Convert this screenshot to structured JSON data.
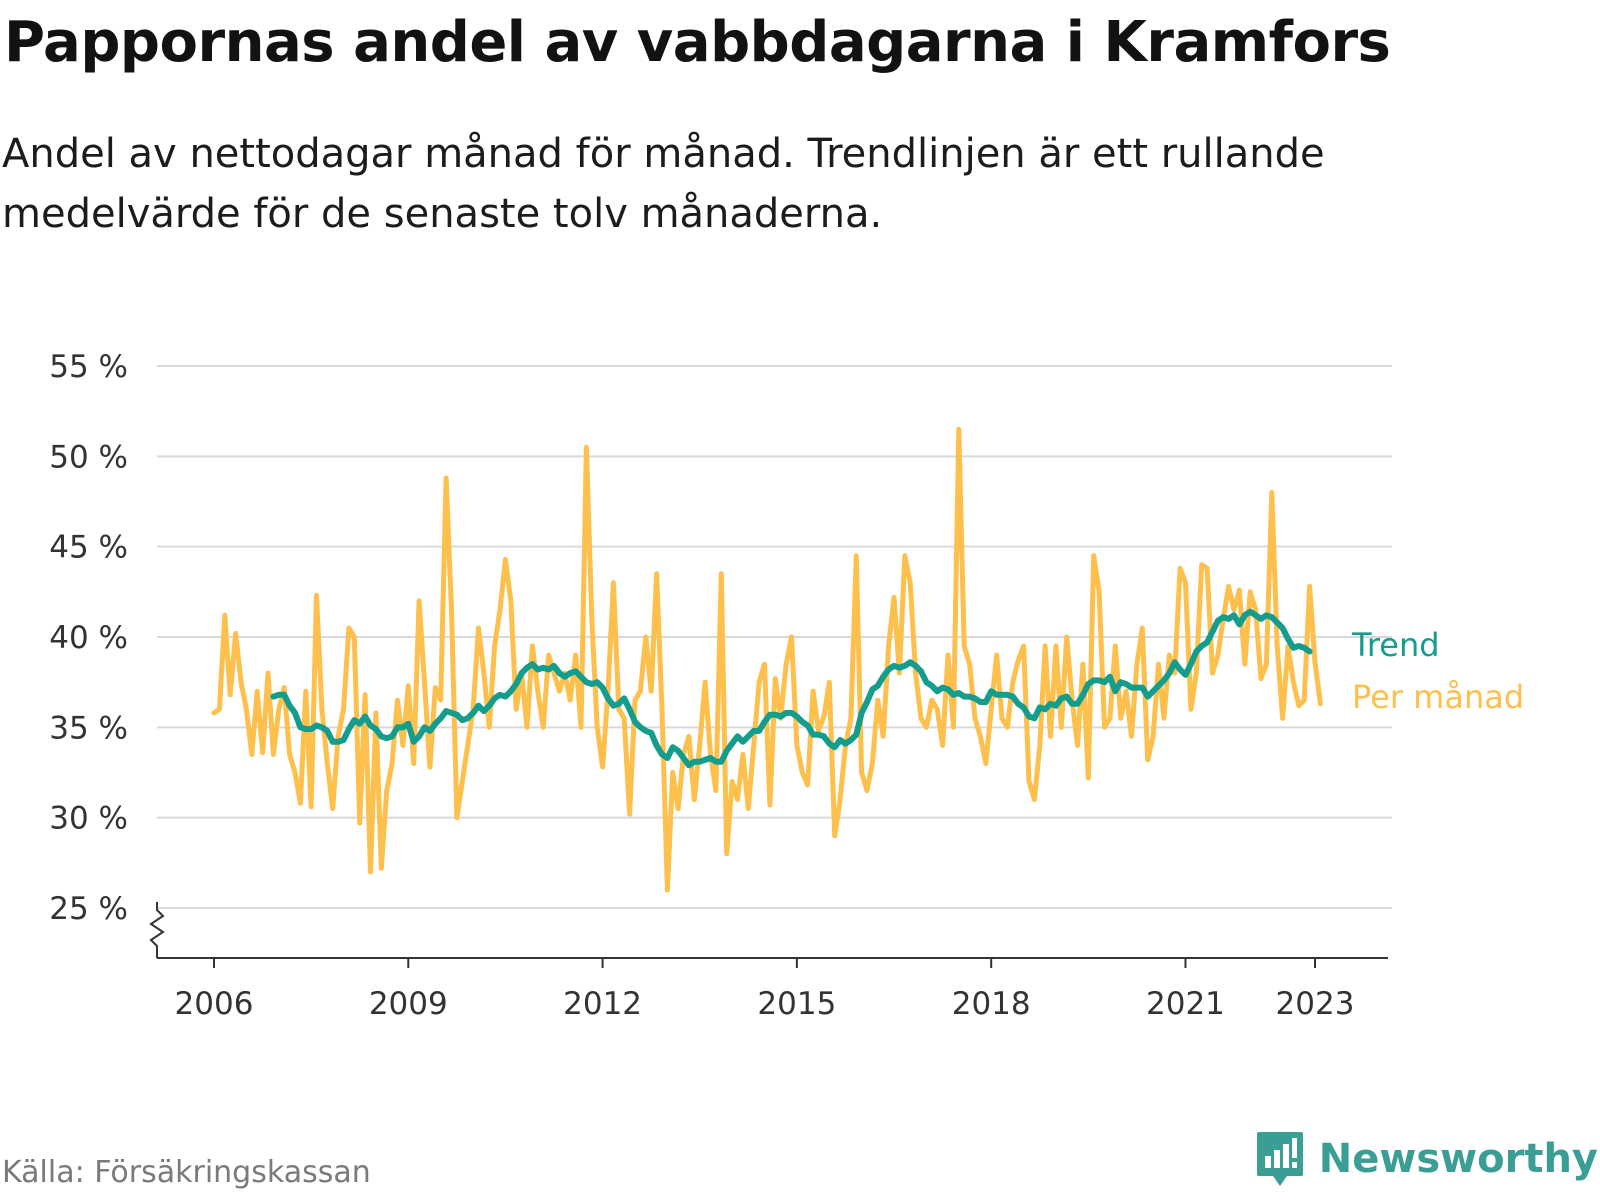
{
  "title": "Pappornas andel av vabbdagarna i Kramfors",
  "subtitle": "Andel av nettodagar månad för månad. Trendlinjen är ett rullande medelvärde för de senaste tolv månaderna.",
  "source": "Källa: Försäkringskassan",
  "brand": {
    "name": "Newsworthy",
    "icon": "newsworthy-logo-icon"
  },
  "colors": {
    "monthly": "#fdc04d",
    "trend": "#149c8c",
    "grid": "#d9d9d9",
    "axis": "#333333"
  },
  "chart_data": {
    "type": "line",
    "xlabel": "",
    "ylabel": "",
    "ylim": [
      25,
      55
    ],
    "y_ticks": [
      55,
      50,
      45,
      40,
      35,
      30,
      25
    ],
    "y_tick_labels": [
      "55 %",
      "50 %",
      "45 %",
      "40 %",
      "35 %",
      "30 %",
      "25 %"
    ],
    "x_ticks": [
      2006,
      2009,
      2012,
      2015,
      2018,
      2021,
      2023
    ],
    "x_tick_labels": [
      "2006",
      "2009",
      "2012",
      "2015",
      "2018",
      "2021",
      "2023"
    ],
    "grid": true,
    "y_axis_break": true,
    "legend": "right, inline at line ends",
    "series": [
      {
        "name": "Per månad",
        "color": "#fdc04d",
        "start": "2006-01",
        "frequency": "monthly",
        "values": [
          35.8,
          36,
          41.2,
          36.8,
          40.2,
          37.5,
          36,
          33.5,
          37,
          33.6,
          38,
          33.5,
          36,
          37.2,
          33.5,
          32.5,
          30.8,
          37,
          30.6,
          42.3,
          36,
          33,
          30.5,
          34.5,
          36,
          40.5,
          40,
          29.7,
          36.8,
          27,
          35.8,
          27.2,
          31.5,
          33,
          36.5,
          34,
          37.3,
          33,
          42,
          37.5,
          32.8,
          37.2,
          36.5,
          48.8,
          41.5,
          30,
          32,
          34,
          36,
          40.5,
          38,
          35,
          39.5,
          41.5,
          44.3,
          42,
          36,
          38,
          35,
          39.5,
          37,
          35,
          39,
          38,
          37,
          38,
          36.5,
          39,
          35,
          50.5,
          41,
          35,
          32.8,
          37,
          43,
          36,
          35.5,
          30.2,
          36.5,
          37,
          40,
          37,
          43.5,
          36,
          26,
          32.5,
          30.5,
          33.5,
          34.5,
          31,
          34,
          37.5,
          33.5,
          31.5,
          43.5,
          28,
          32,
          31,
          33.5,
          30.5,
          34,
          37.5,
          38.5,
          30.7,
          37.7,
          35.5,
          38.5,
          40,
          34,
          32.5,
          31.8,
          37,
          34.8,
          35.6,
          37.5,
          29,
          31,
          34,
          35.5,
          44.5,
          32.5,
          31.5,
          33,
          36.5,
          34.5,
          39.5,
          42.2,
          38,
          44.5,
          43,
          38,
          35.5,
          35,
          36.5,
          36,
          34,
          39,
          35,
          51.5,
          39.5,
          38.5,
          35.5,
          34.5,
          33,
          36,
          39,
          35.5,
          35,
          37.5,
          38.7,
          39.5,
          32,
          31,
          34,
          39.5,
          34.5,
          39.5,
          35,
          40,
          36.5,
          34,
          38.5,
          32.2,
          44.5,
          42.5,
          35,
          35.5,
          39.5,
          35.5,
          37,
          34.5,
          38.5,
          40.5,
          33.2,
          34.5,
          38.5,
          35.5,
          39,
          38,
          43.8,
          43,
          36,
          38,
          44,
          43.8,
          38,
          39,
          41,
          42.8,
          41.5,
          42.6,
          38.5,
          42.5,
          41.5,
          37.7,
          38.5,
          48,
          39.5,
          35.5,
          39.5,
          37.5,
          36.2,
          36.5,
          42.8,
          38.6,
          36.3
        ]
      },
      {
        "name": "Trend",
        "color": "#149c8c",
        "start": "2006-12",
        "frequency": "monthly",
        "values": [
          36.7,
          36.8,
          36.8,
          36.2,
          35.8,
          35,
          34.9,
          34.9,
          35.1,
          35.0,
          34.8,
          34.2,
          34.2,
          34.3,
          34.9,
          35.4,
          35.2,
          35.6,
          35.1,
          34.9,
          34.5,
          34.4,
          34.5,
          35.0,
          35.0,
          35.2,
          34.2,
          34.5,
          35.0,
          34.8,
          35.2,
          35.5,
          35.9,
          35.8,
          35.7,
          35.4,
          35.5,
          35.8,
          36.2,
          35.9,
          36.2,
          36.6,
          36.8,
          36.7,
          37.0,
          37.4,
          38.0,
          38.3,
          38.5,
          38.2,
          38.3,
          38.2,
          38.4,
          38.0,
          37.8,
          38.0,
          38.1,
          37.8,
          37.5,
          37.4,
          37.5,
          37.2,
          36.6,
          36.2,
          36.3,
          36.6,
          36.0,
          35.3,
          35.0,
          34.8,
          34.7,
          34.0,
          33.5,
          33.3,
          33.9,
          33.7,
          33.3,
          32.9,
          33.1,
          33.1,
          33.2,
          33.3,
          33.1,
          33.1,
          33.7,
          34.1,
          34.5,
          34.2,
          34.5,
          34.8,
          34.8,
          35.3,
          35.7,
          35.7,
          35.6,
          35.8,
          35.8,
          35.6,
          35.3,
          35.1,
          34.6,
          34.6,
          34.5,
          34.1,
          33.9,
          34.3,
          34.1,
          34.3,
          34.6,
          35.8,
          36.4,
          37.1,
          37.3,
          37.8,
          38.2,
          38.4,
          38.3,
          38.4,
          38.6,
          38.4,
          38.1,
          37.5,
          37.3,
          37.0,
          37.2,
          37.1,
          36.8,
          36.9,
          36.7,
          36.7,
          36.6,
          36.4,
          36.4,
          37.0,
          36.8,
          36.8,
          36.8,
          36.7,
          36.3,
          36.1,
          35.6,
          35.5,
          36.1,
          36.0,
          36.3,
          36.2,
          36.6,
          36.7,
          36.3,
          36.3,
          36.8,
          37.4,
          37.6,
          37.6,
          37.5,
          37.8,
          37.0,
          37.5,
          37.4,
          37.2,
          37.2,
          37.2,
          36.7,
          37.0,
          37.3,
          37.6,
          38.0,
          38.6,
          38.2,
          37.9,
          38.5,
          39.2,
          39.5,
          39.7,
          40.3,
          40.9,
          41.1,
          41.0,
          41.2,
          40.7,
          41.2,
          41.4,
          41.2,
          41.0,
          41.2,
          41.1,
          40.8,
          40.5,
          39.9,
          39.4,
          39.5,
          39.4,
          39.2
        ]
      }
    ]
  }
}
